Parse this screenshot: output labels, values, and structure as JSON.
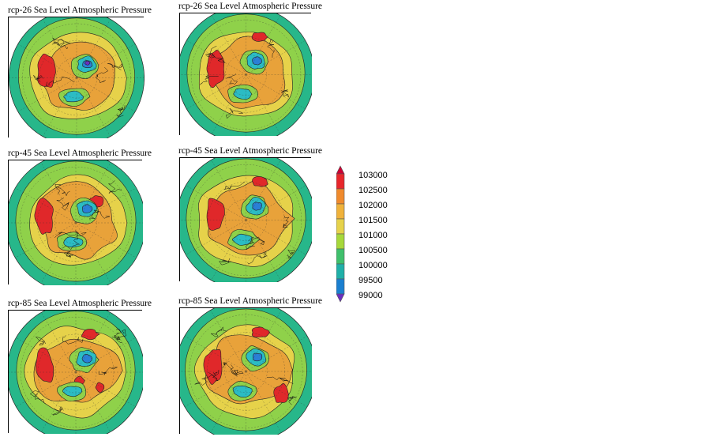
{
  "panels": [
    {
      "id": "p1",
      "title": "rcp-26 Sea Level Atmospheric Pressure",
      "season": "left"
    },
    {
      "id": "p2",
      "title": "rcp-26 Sea Level Atmospheric Pressure",
      "season": "right"
    },
    {
      "id": "p3",
      "title": "rcp-45 Sea Level Atmospheric Pressure",
      "season": "left"
    },
    {
      "id": "p4",
      "title": "rcp-45 Sea Level Atmospheric Pressure",
      "season": "right"
    },
    {
      "id": "p5",
      "title": "rcp-85 Sea Level Atmospheric Pressure",
      "season": "left"
    },
    {
      "id": "p6",
      "title": "rcp-85 Sea Level Atmospheric Pressure",
      "season": "right"
    }
  ],
  "legend": {
    "labels": [
      "103000",
      "102500",
      "102000",
      "101500",
      "101000",
      "100500",
      "100000",
      "99500",
      "99000"
    ],
    "colors": [
      "#cc0033",
      "#e8272b",
      "#f08a2c",
      "#f0b23a",
      "#e6d24a",
      "#a6d83a",
      "#3fc06c",
      "#1fb0a8",
      "#1a7fd0",
      "#6a2fc0"
    ]
  },
  "palette": {
    "outer_ring": "#27b78a",
    "green": "#8fd14a",
    "yellow": "#e6d24a",
    "orange": "#e8a23a",
    "red": "#e0282a",
    "cyan": "#2bbcc4",
    "blue": "#2a7fd6",
    "purple": "#6a2fc0"
  }
}
